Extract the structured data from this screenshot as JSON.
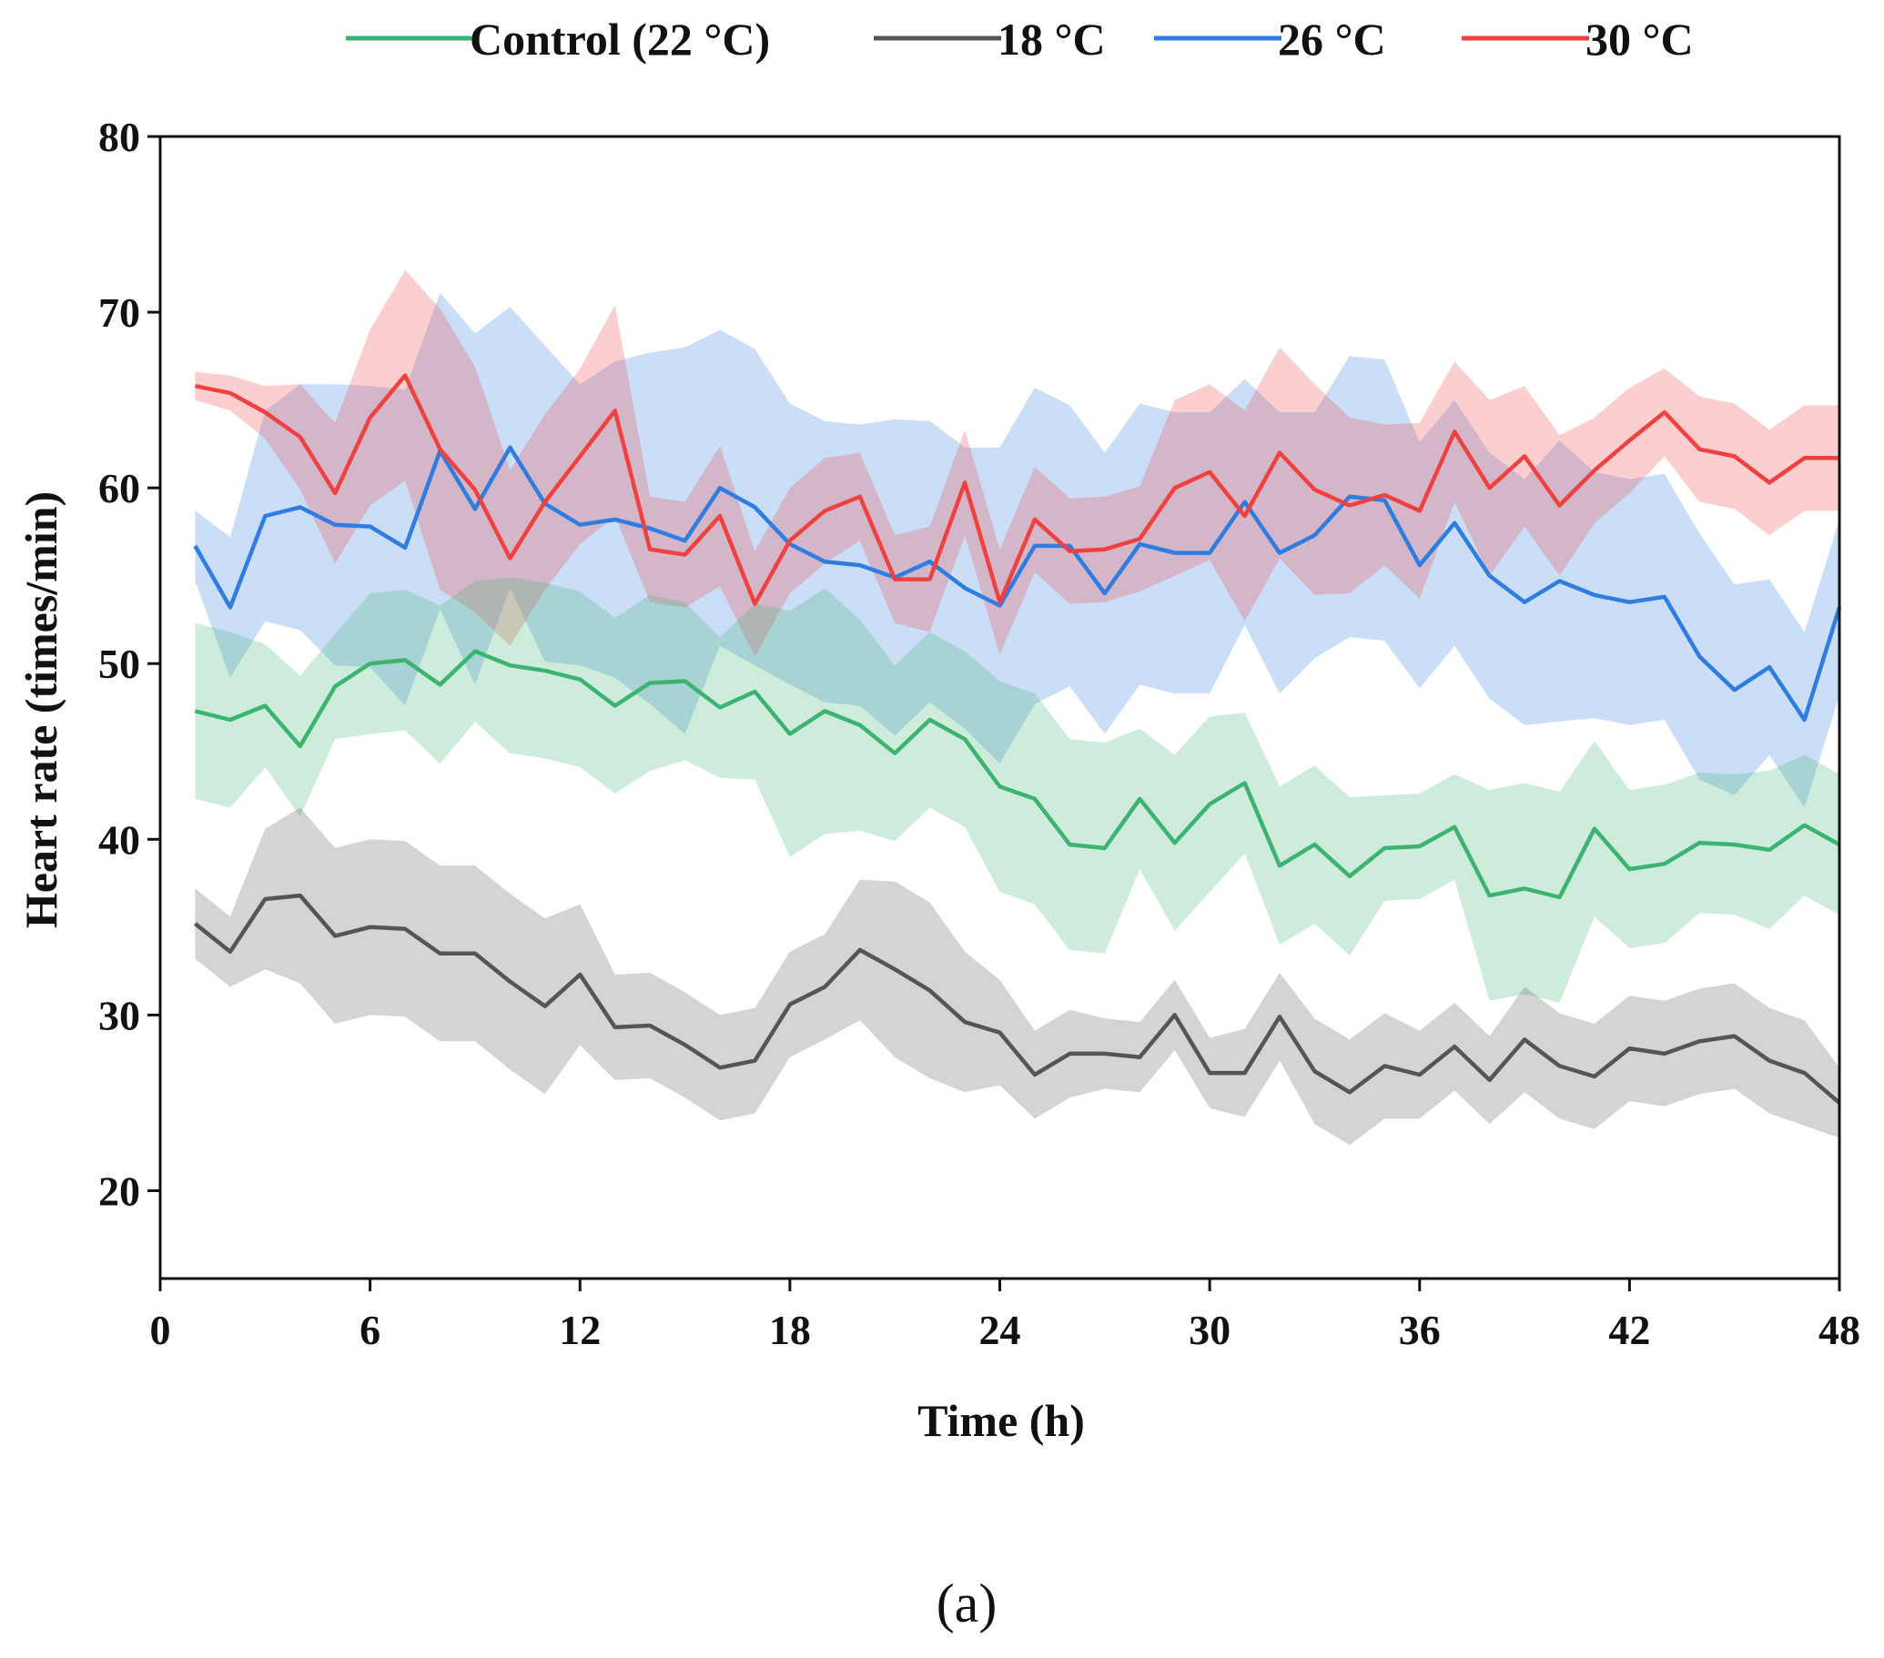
{
  "chart_data": {
    "type": "line",
    "title": "",
    "caption": "(a)",
    "xlabel": "Time (h)",
    "ylabel": "Heart rate (times/min)",
    "xlim": [
      0,
      48
    ],
    "ylim": [
      15,
      80
    ],
    "xticks": [
      "0",
      "6",
      "12",
      "18",
      "24",
      "30",
      "36",
      "42",
      "48"
    ],
    "yticks": [
      "20",
      "30",
      "40",
      "50",
      "60",
      "70",
      "80"
    ],
    "grid": false,
    "legend_placement": "top-center",
    "x": [
      1,
      2,
      3,
      4,
      5,
      6,
      7,
      8,
      9,
      10,
      11,
      12,
      13,
      14,
      15,
      16,
      17,
      18,
      19,
      20,
      21,
      22,
      23,
      24,
      25,
      26,
      27,
      28,
      29,
      30,
      31,
      32,
      33,
      34,
      35,
      36,
      37,
      38,
      39,
      40,
      41,
      42,
      43,
      44,
      45,
      46,
      47,
      48
    ],
    "series": [
      {
        "name": "Control (22 °C)",
        "color": "#3cb371",
        "values": [
          47.3,
          46.8,
          47.6,
          45.3,
          48.7,
          50.0,
          50.2,
          48.8,
          50.7,
          49.9,
          49.6,
          49.1,
          47.6,
          48.9,
          49.0,
          47.5,
          48.4,
          46.0,
          47.3,
          46.5,
          44.9,
          46.8,
          45.7,
          43.0,
          42.3,
          39.7,
          39.5,
          42.3,
          39.8,
          42.0,
          43.2,
          38.5,
          39.7,
          37.9,
          39.5,
          39.6,
          40.7,
          36.8,
          37.2,
          36.7,
          40.6,
          38.3,
          38.6,
          39.8,
          39.7,
          39.4,
          40.8,
          39.7
        ],
        "sd": [
          5,
          5,
          3.5,
          4,
          3,
          4,
          4,
          4.5,
          4,
          5,
          5,
          5,
          5,
          5,
          4.5,
          4,
          5,
          7,
          7,
          6,
          5,
          5,
          5,
          6,
          6,
          6,
          6,
          4,
          5,
          5,
          4,
          4.5,
          4.5,
          4.5,
          3,
          3,
          3,
          6,
          6,
          6,
          5,
          4.5,
          4.5,
          4,
          4,
          4.5,
          4,
          4
        ]
      },
      {
        "name": "18 °C",
        "color": "#555555",
        "values": [
          35.2,
          33.6,
          36.6,
          36.8,
          34.5,
          35.0,
          34.9,
          33.5,
          33.5,
          31.9,
          30.5,
          32.3,
          29.3,
          29.4,
          28.3,
          27.0,
          27.4,
          30.6,
          31.6,
          33.7,
          32.6,
          31.4,
          29.6,
          29.0,
          26.6,
          27.8,
          27.8,
          27.6,
          30.0,
          26.7,
          26.7,
          29.9,
          26.8,
          25.6,
          27.1,
          26.6,
          28.2,
          26.3,
          28.6,
          27.1,
          26.5,
          28.1,
          27.8,
          28.5,
          28.8,
          27.4,
          26.7,
          25.0
        ],
        "sd": [
          2,
          2,
          4,
          5,
          5,
          5,
          5,
          5,
          5,
          5,
          5,
          4,
          3,
          3,
          3,
          3,
          3,
          3,
          3,
          4,
          5,
          5,
          4,
          3,
          2.5,
          2.5,
          2,
          2,
          2,
          2,
          2.5,
          2.5,
          3,
          3,
          3,
          2.5,
          2.5,
          2.5,
          3,
          3,
          3,
          3,
          3,
          3,
          3,
          3,
          3,
          2
        ]
      },
      {
        "name": "26 °C",
        "color": "#2f7de1",
        "values": [
          56.7,
          53.2,
          58.4,
          58.9,
          57.9,
          57.8,
          56.6,
          62.1,
          58.8,
          62.3,
          59.1,
          57.9,
          58.2,
          57.7,
          57.0,
          60.0,
          58.9,
          56.8,
          55.8,
          55.6,
          54.9,
          55.8,
          54.3,
          53.3,
          56.7,
          56.7,
          54.0,
          56.8,
          56.3,
          56.3,
          59.2,
          56.3,
          57.3,
          59.5,
          59.3,
          55.6,
          58.0,
          55.0,
          53.5,
          54.7,
          53.9,
          53.5,
          53.8,
          50.4,
          48.5,
          49.8,
          46.8,
          53.2
        ],
        "sd": [
          2,
          4,
          6,
          7,
          8,
          8,
          9,
          9,
          10,
          8,
          9,
          8,
          9,
          10,
          11,
          9,
          9,
          8,
          8,
          8,
          9,
          8,
          8,
          9,
          9,
          8,
          8,
          8,
          8,
          8,
          7,
          8,
          7,
          8,
          8,
          7,
          7,
          7,
          7,
          8,
          7,
          7,
          7,
          7,
          6,
          5,
          5,
          5
        ]
      },
      {
        "name": "30 °C",
        "color": "#f04040",
        "values": [
          65.8,
          65.4,
          64.3,
          62.9,
          59.7,
          64.0,
          66.4,
          62.2,
          59.9,
          56.0,
          59.2,
          61.8,
          64.4,
          56.5,
          56.2,
          58.4,
          53.4,
          57.0,
          58.7,
          59.5,
          54.8,
          54.8,
          60.3,
          53.5,
          58.2,
          56.4,
          56.5,
          57.1,
          60.0,
          60.9,
          58.4,
          62.0,
          59.9,
          59.0,
          59.6,
          58.7,
          63.2,
          60.0,
          61.8,
          59.0,
          61.0,
          62.7,
          64.3,
          62.2,
          61.8,
          60.3,
          61.7,
          61.7
        ],
        "sd": [
          0.8,
          1,
          1.5,
          3,
          4,
          5,
          6,
          8,
          7,
          5,
          5,
          5,
          6,
          3,
          3,
          4,
          3,
          3,
          3,
          2.5,
          2.5,
          3,
          3,
          3,
          3,
          3,
          3,
          3,
          5,
          5,
          6,
          6,
          6,
          5,
          4,
          5,
          4,
          5,
          4,
          4,
          3,
          3,
          2.5,
          3,
          3,
          3,
          3,
          3
        ]
      }
    ]
  }
}
